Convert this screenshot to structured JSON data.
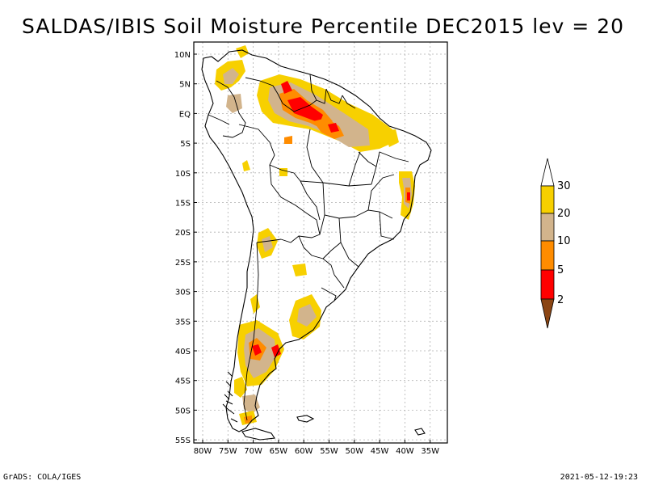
{
  "title": "SALDAS/IBIS Soil Moisture Percentile DEC2015 lev = 20",
  "map": {
    "lat_range": [
      -56,
      12
    ],
    "lon_range": [
      -81,
      -31
    ],
    "lat_ticks": [
      "10N",
      "5N",
      "EQ",
      "5S",
      "10S",
      "15S",
      "20S",
      "25S",
      "30S",
      "35S",
      "40S",
      "45S",
      "50S",
      "55S"
    ],
    "lon_ticks": [
      "80W",
      "75W",
      "70W",
      "65W",
      "60W",
      "55W",
      "50W",
      "45W",
      "40W",
      "35W"
    ],
    "region": "South America"
  },
  "legend": {
    "labels": [
      "30",
      "20",
      "10",
      "5",
      "2"
    ],
    "colors": {
      "above_30": "#ffffff",
      "20_30": "#f7d000",
      "10_20": "#d2b48c",
      "5_10": "#ff8c00",
      "2_5": "#ff0000",
      "below_2": "#8b4513"
    }
  },
  "footer": {
    "left": "GrADS: COLA/IGES",
    "right": "2021-05-12-19:23"
  }
}
